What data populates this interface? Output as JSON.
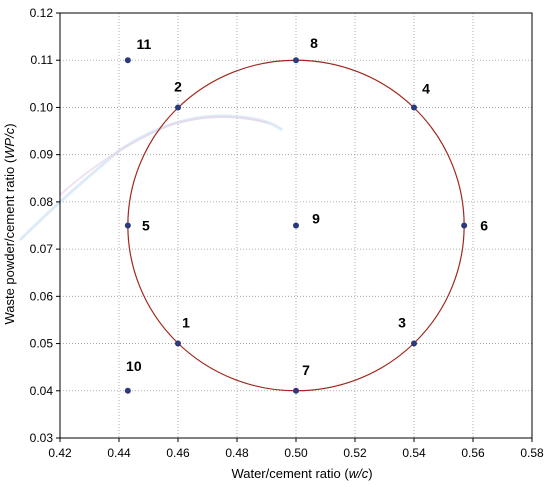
{
  "chart_data": {
    "type": "scatter",
    "xlabel_parts": [
      "Water/cement ratio (",
      "w/c",
      ")"
    ],
    "ylabel_parts": [
      "Waste powder/cement ratio (",
      "WP/c",
      ")"
    ],
    "xlim": [
      0.42,
      0.58
    ],
    "ylim": [
      0.03,
      0.12
    ],
    "x_ticks": [
      "0.42",
      "0.44",
      "0.46",
      "0.48",
      "0.50",
      "0.52",
      "0.54",
      "0.56",
      "0.58"
    ],
    "y_ticks": [
      "0.03",
      "0.04",
      "0.05",
      "0.06",
      "0.07",
      "0.08",
      "0.09",
      "0.10",
      "0.11",
      "0.12"
    ],
    "grid": true,
    "points": [
      {
        "label": "1",
        "x": 0.46,
        "y": 0.05
      },
      {
        "label": "2",
        "x": 0.46,
        "y": 0.1
      },
      {
        "label": "3",
        "x": 0.54,
        "y": 0.05
      },
      {
        "label": "4",
        "x": 0.54,
        "y": 0.1
      },
      {
        "label": "5",
        "x": 0.443,
        "y": 0.075
      },
      {
        "label": "6",
        "x": 0.557,
        "y": 0.075
      },
      {
        "label": "7",
        "x": 0.5,
        "y": 0.04
      },
      {
        "label": "8",
        "x": 0.5,
        "y": 0.11
      },
      {
        "label": "9",
        "x": 0.5,
        "y": 0.075
      },
      {
        "label": "10",
        "x": 0.443,
        "y": 0.04
      },
      {
        "label": "11",
        "x": 0.443,
        "y": 0.11
      }
    ],
    "circle": {
      "center_x": 0.5,
      "center_y": 0.075,
      "radius_x": 0.057,
      "radius_y": 0.035
    },
    "colors": {
      "point": "#2b3a7a",
      "circle": "#a0281e",
      "grid": "#9a9a9a",
      "frame": "#000000"
    }
  }
}
